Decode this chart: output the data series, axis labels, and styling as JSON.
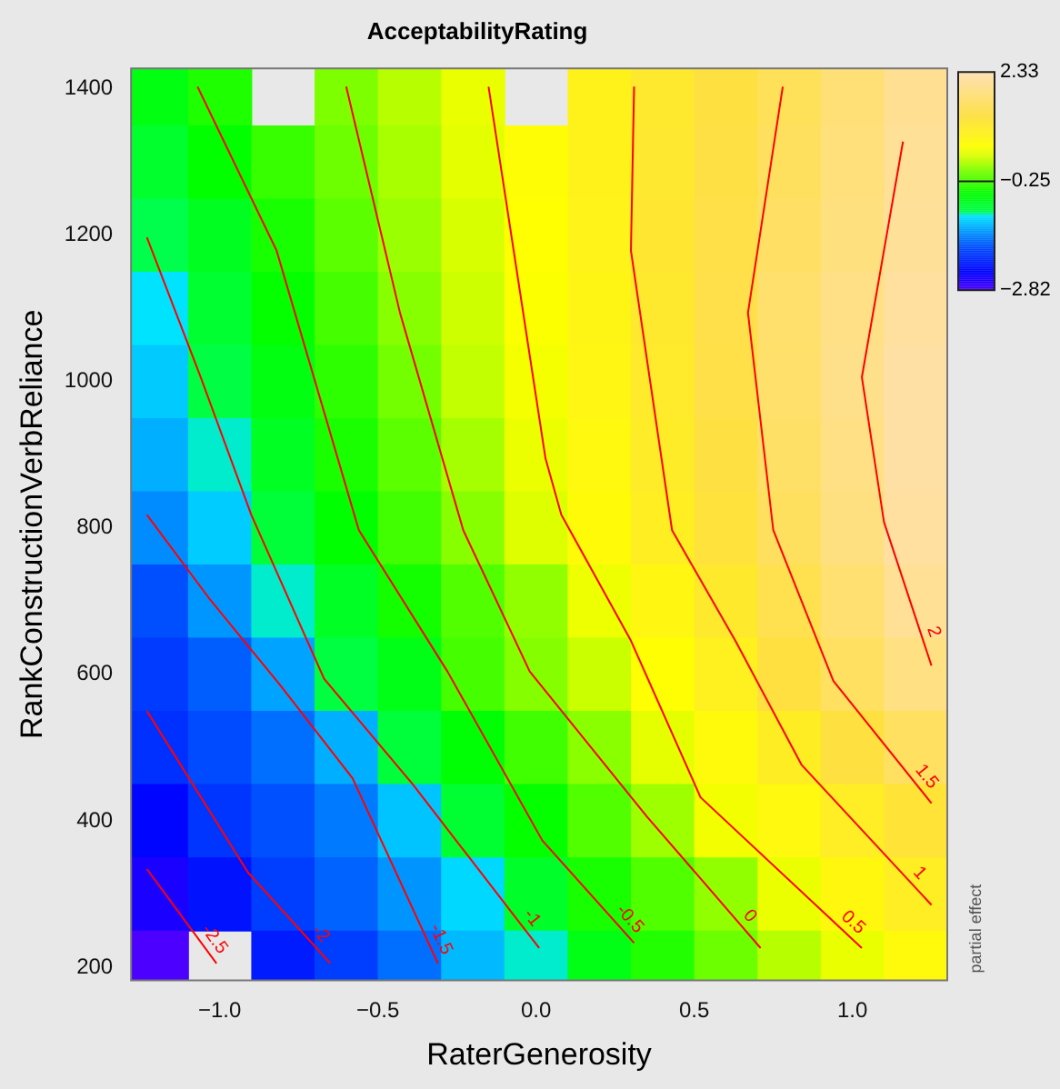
{
  "chart_data": {
    "type": "heatmap",
    "title": "AcceptabilityRating",
    "xlabel": "RaterGenerosity",
    "ylabel": "RankConstructionVerbReliance",
    "clabel": "partial effect",
    "x": [
      -1.2,
      -1.0,
      -0.8,
      -0.6,
      -0.4,
      -0.2,
      0.0,
      0.2,
      0.4,
      0.6,
      0.8,
      1.0,
      1.2
    ],
    "y": [
      1400,
      1300,
      1200,
      1100,
      1000,
      900,
      800,
      700,
      600,
      500,
      400,
      300,
      200
    ],
    "cells": [
      [
        -0.64,
        -0.42,
        null,
        0,
        0.22,
        0.44,
        null,
        0.88,
        1.1,
        1.31,
        1.52,
        1.78,
        2.04
      ],
      [
        -0.79,
        -0.55,
        -0.31,
        -0.07,
        0.16,
        0.4,
        0.63,
        0.87,
        1.11,
        1.34,
        1.57,
        1.83,
        2.07
      ],
      [
        -0.96,
        -0.73,
        -0.45,
        -0.15,
        0.11,
        0.34,
        0.59,
        0.86,
        1.13,
        1.38,
        1.62,
        1.86,
        2.1
      ],
      [
        -1.08,
        -0.81,
        -0.54,
        -0.25,
        0.04,
        0.3,
        0.55,
        0.82,
        1.1,
        1.4,
        1.7,
        1.93,
        2.15
      ],
      [
        -1.2,
        -0.92,
        -0.64,
        -0.35,
        -0.04,
        0.26,
        0.52,
        0.79,
        1.07,
        1.38,
        1.68,
        1.96,
        2.2
      ],
      [
        -1.33,
        -1.04,
        -0.74,
        -0.44,
        -0.15,
        0.15,
        0.45,
        0.75,
        1.03,
        1.32,
        1.64,
        1.92,
        2.2
      ],
      [
        -1.5,
        -1.19,
        -0.86,
        -0.56,
        -0.26,
        0.04,
        0.36,
        0.67,
        0.96,
        1.25,
        1.57,
        1.87,
        2.16
      ],
      [
        -1.8,
        -1.45,
        -1.04,
        -0.75,
        -0.47,
        -0.19,
        0.08,
        0.46,
        0.77,
        1.08,
        1.43,
        1.73,
        2.05
      ],
      [
        -1.95,
        -1.72,
        -1.39,
        -0.9,
        -0.67,
        -0.25,
        0.03,
        0.29,
        0.6,
        0.93,
        1.3,
        1.6,
        1.9
      ],
      [
        -2.04,
        -1.84,
        -1.64,
        -1.33,
        -0.87,
        -0.58,
        -0.27,
        0.05,
        0.41,
        0.7,
        0.99,
        1.31,
        1.6
      ],
      [
        -2.37,
        -2.0,
        -1.79,
        -1.58,
        -1.23,
        -0.82,
        -0.54,
        -0.19,
        0.12,
        0.5,
        0.75,
        1.0,
        1.2
      ],
      [
        -2.55,
        -2.27,
        -1.93,
        -1.7,
        -1.46,
        -1.13,
        -0.78,
        -0.45,
        -0.2,
        0.08,
        0.45,
        0.74,
        0.97
      ],
      [
        -2.82,
        null,
        -2.2,
        -1.93,
        -1.64,
        -1.28,
        -1.04,
        -0.66,
        -0.41,
        -0.08,
        0.22,
        0.44,
        0.7
      ]
    ],
    "clim": [
      -2.82,
      2.33
    ],
    "cticks": [
      {
        "value": -2.82,
        "label": "−2.82"
      },
      {
        "value": -0.25,
        "label": "−0.25"
      },
      2.33
    ],
    "xlim": [
      -1.28,
      1.3
    ],
    "ylim": [
      182,
      1428
    ],
    "xticks": [
      {
        "value": -1,
        "label": "−1.0"
      },
      {
        "value": -0.5,
        "label": "−0.5"
      },
      {
        "value": 0,
        "label": "0.0"
      },
      {
        "value": 0.5,
        "label": "0.5"
      },
      {
        "value": 1,
        "label": "1.0"
      }
    ],
    "yticks": [
      200,
      400,
      600,
      800,
      1000,
      1200,
      1400
    ],
    "series": [
      {
        "type": "line",
        "name": "-2.5",
        "color": "#ff0000",
        "x": [
          -1.23,
          -1.01
        ],
        "values": [
          334,
          205
        ]
      },
      {
        "type": "line",
        "name": "-2",
        "color": "#ff0000",
        "x": [
          -1.23,
          -0.91,
          -0.65
        ],
        "values": [
          550,
          329,
          205
        ]
      },
      {
        "type": "line",
        "name": "-1.5",
        "color": "#ff0000",
        "x": [
          -1.23,
          -1.03,
          -0.81,
          -0.58,
          -0.31
        ],
        "values": [
          818,
          702,
          586,
          458,
          205
        ]
      },
      {
        "type": "line",
        "name": "-1",
        "color": "#ff0000",
        "x": [
          -1.23,
          -1.06,
          -0.9,
          -0.67,
          -0.39,
          0.01
        ],
        "values": [
          1197,
          1006,
          818,
          594,
          450,
          226
        ]
      },
      {
        "type": "line",
        "name": "-0.5",
        "color": "#ff0000",
        "x": [
          -1.07,
          -0.82,
          -0.56,
          -0.28,
          0.02,
          0.31
        ],
        "values": [
          1403,
          1179,
          797,
          604,
          373,
          233
        ]
      },
      {
        "type": "line",
        "name": "0",
        "color": "#ff0000",
        "x": [
          -0.6,
          -0.43,
          -0.23,
          -0.02,
          0.35,
          0.71
        ],
        "values": [
          1403,
          1094,
          797,
          604,
          406,
          226
        ]
      },
      {
        "type": "line",
        "name": "0.5",
        "color": "#ff0000",
        "x": [
          -0.15,
          0.03,
          0.08,
          0.3,
          0.52,
          1.03
        ],
        "values": [
          1403,
          895,
          818,
          646,
          432,
          226
        ]
      },
      {
        "type": "line",
        "name": "1",
        "color": "#ff0000",
        "x": [
          0.31,
          0.3,
          0.43,
          0.63,
          0.84,
          1.25
        ],
        "values": [
          1403,
          1179,
          797,
          646,
          476,
          285
        ]
      },
      {
        "type": "line",
        "name": "1.5",
        "color": "#ff0000",
        "x": [
          0.78,
          0.67,
          0.75,
          0.94,
          1.25
        ],
        "values": [
          1403,
          1094,
          797,
          591,
          424
        ]
      },
      {
        "type": "line",
        "name": "2",
        "color": "#ff0000",
        "x": [
          1.16,
          1.03,
          1.1,
          1.25
        ],
        "values": [
          1328,
          1006,
          808,
          612
        ]
      }
    ]
  }
}
